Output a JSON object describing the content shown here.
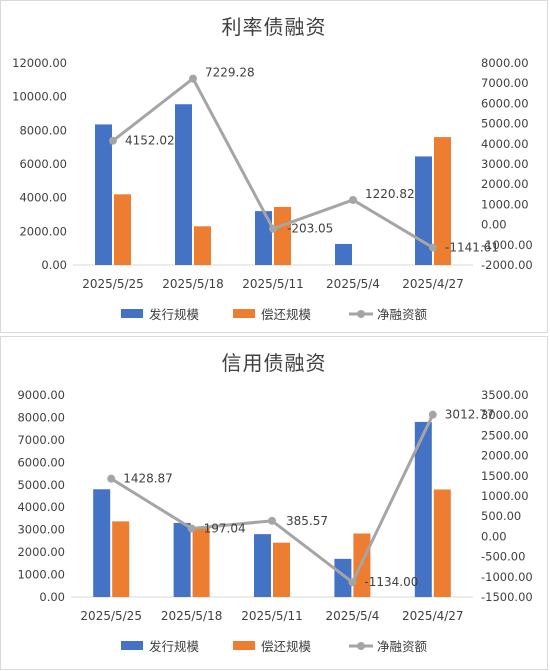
{
  "colors": {
    "issue": "#4472C4",
    "repay": "#ED7D31",
    "net": "#A5A5A5",
    "grid": "#D9D9D9",
    "text": "#404040"
  },
  "chart_data": [
    {
      "type": "bar",
      "title": "利率债融资",
      "categories": [
        "2025/5/25",
        "2025/5/18",
        "2025/5/11",
        "2025/5/4",
        "2025/4/27"
      ],
      "series": [
        {
          "name": "发行规模",
          "axis": "left",
          "kind": "bar",
          "values": [
            8350,
            9550,
            3200,
            1250,
            6450
          ]
        },
        {
          "name": "偿还规模",
          "axis": "left",
          "kind": "bar",
          "values": [
            4200,
            2300,
            3450,
            0,
            7600
          ]
        },
        {
          "name": "净融资额",
          "axis": "right",
          "kind": "line",
          "values": [
            4152.02,
            7229.28,
            -203.05,
            1220.82,
            -1141.61
          ]
        }
      ],
      "data_labels": [
        "4152.02",
        "7229.28",
        "-203.05",
        "1220.82",
        "-1141.61"
      ],
      "ylim": [
        0,
        12000
      ],
      "yticks": [
        "0.00",
        "2000.00",
        "4000.00",
        "6000.00",
        "8000.00",
        "10000.00",
        "12000.00"
      ],
      "y2lim": [
        -2000,
        8000
      ],
      "y2ticks": [
        "-2000.00",
        "-1000.00",
        "0.00",
        "1000.00",
        "2000.00",
        "3000.00",
        "4000.00",
        "5000.00",
        "6000.00",
        "7000.00",
        "8000.00"
      ],
      "grid": false,
      "legend": "bottom"
    },
    {
      "type": "bar",
      "title": "信用债融资",
      "categories": [
        "2025/5/25",
        "2025/5/18",
        "2025/5/11",
        "2025/5/4",
        "2025/4/27"
      ],
      "series": [
        {
          "name": "发行规模",
          "axis": "left",
          "kind": "bar",
          "values": [
            4800,
            3300,
            2800,
            1700,
            7800
          ]
        },
        {
          "name": "偿还规模",
          "axis": "left",
          "kind": "bar",
          "values": [
            3370,
            3100,
            2420,
            2830,
            4790
          ]
        },
        {
          "name": "净融资额",
          "axis": "right",
          "kind": "line",
          "values": [
            1428.87,
            197.04,
            385.57,
            -1134.0,
            3012.77
          ]
        }
      ],
      "data_labels": [
        "1428.87",
        "197.04",
        "385.57",
        "-1134.00",
        "3012.77"
      ],
      "ylim": [
        0,
        9000
      ],
      "yticks": [
        "0.00",
        "1000.00",
        "2000.00",
        "3000.00",
        "4000.00",
        "5000.00",
        "6000.00",
        "7000.00",
        "8000.00",
        "9000.00"
      ],
      "y2lim": [
        -1500,
        3500
      ],
      "y2ticks": [
        "-1500.00",
        "-1000.00",
        "-500.00",
        "0.00",
        "500.00",
        "1000.00",
        "1500.00",
        "2000.00",
        "2500.00",
        "3000.00",
        "3500.00"
      ],
      "grid": false,
      "legend": "bottom"
    }
  ]
}
